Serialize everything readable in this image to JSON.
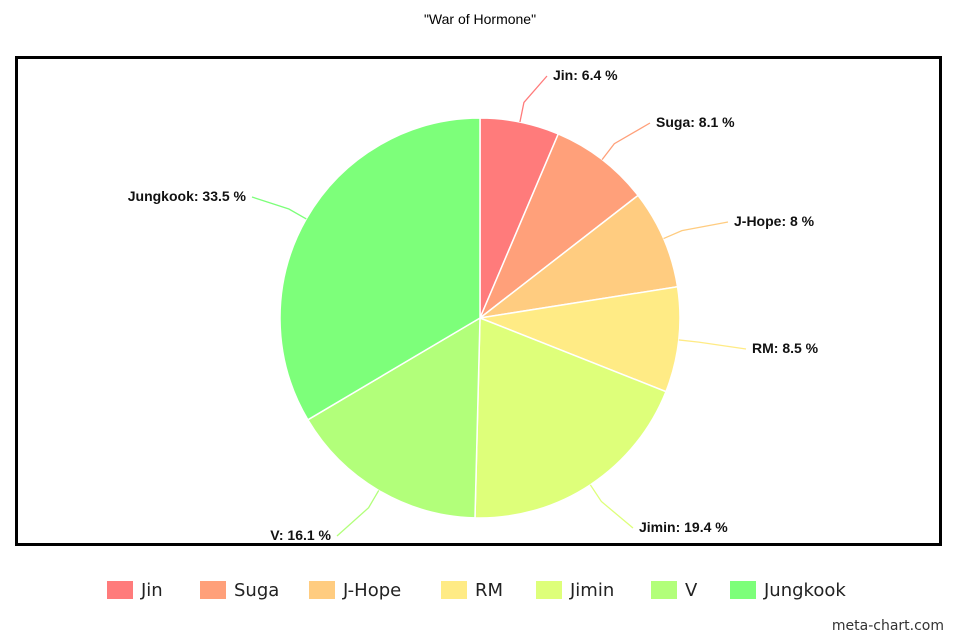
{
  "chart_data": {
    "type": "pie",
    "title": "\"War of Hormone\"",
    "slices": [
      {
        "name": "Jin",
        "value": 6.4,
        "label": "Jin: 6.4 %",
        "color": "#ff7b7b"
      },
      {
        "name": "Suga",
        "value": 8.1,
        "label": "Suga: 8.1 %",
        "color": "#ffa07a"
      },
      {
        "name": "J-Hope",
        "value": 8,
        "label": "J-Hope: 8 %",
        "color": "#ffcc80"
      },
      {
        "name": "RM",
        "value": 8.5,
        "label": "RM: 8.5 %",
        "color": "#ffeb85"
      },
      {
        "name": "Jimin",
        "value": 19.4,
        "label": "Jimin: 19.4 %",
        "color": "#deff7a"
      },
      {
        "name": "V",
        "value": 16.1,
        "label": "V: 16.1 %",
        "color": "#b2ff7a"
      },
      {
        "name": "Jungkook",
        "value": 33.5,
        "label": "Jungkook: 33.5 %",
        "color": "#7dff7a"
      }
    ],
    "legend_position": "bottom"
  },
  "watermark": "meta-chart.com"
}
